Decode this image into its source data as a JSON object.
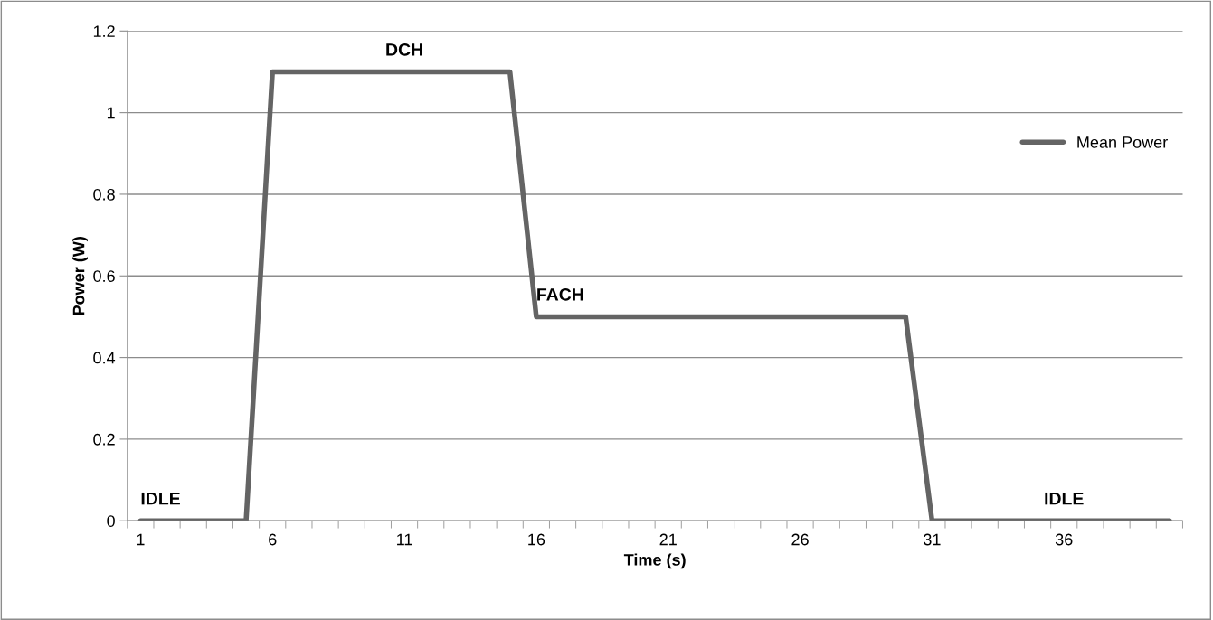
{
  "chart_data": {
    "type": "line",
    "xlabel": "Time (s)",
    "ylabel": "Power (W)",
    "categories": [
      "1",
      null,
      null,
      null,
      null,
      "6",
      null,
      null,
      null,
      null,
      "11",
      null,
      null,
      null,
      null,
      "16",
      null,
      null,
      null,
      null,
      "21",
      null,
      null,
      null,
      null,
      "26",
      null,
      null,
      null,
      null,
      "31",
      null,
      null,
      null,
      null,
      "36",
      null,
      null,
      null,
      null
    ],
    "series": [
      {
        "name": "Mean Power",
        "color": "#646464",
        "values": [
          0,
          0,
          0,
          0,
          0,
          1.1,
          1.1,
          1.1,
          1.1,
          1.1,
          1.1,
          1.1,
          1.1,
          1.1,
          1.1,
          0.5,
          0.5,
          0.5,
          0.5,
          0.5,
          0.5,
          0.5,
          0.5,
          0.5,
          0.5,
          0.5,
          0.5,
          0.5,
          0.5,
          0.5,
          0,
          0,
          0,
          0,
          0,
          0,
          0,
          0,
          0,
          0
        ]
      }
    ],
    "ylim": [
      0,
      1.2
    ],
    "yticks": [
      0,
      0.2,
      0.4,
      0.6,
      0.8,
      1,
      1.2
    ],
    "grid": "y",
    "legend": "right",
    "marker": "none",
    "line_style": "solid",
    "annotations": [
      {
        "text": "IDLE",
        "x": "1",
        "y": 0
      },
      {
        "text": "DCH",
        "x": "11",
        "y": 1.1
      },
      {
        "text": "FACH",
        "x": "16",
        "y": 0.5
      },
      {
        "text": "IDLE",
        "x": "36",
        "y": 0
      }
    ]
  }
}
